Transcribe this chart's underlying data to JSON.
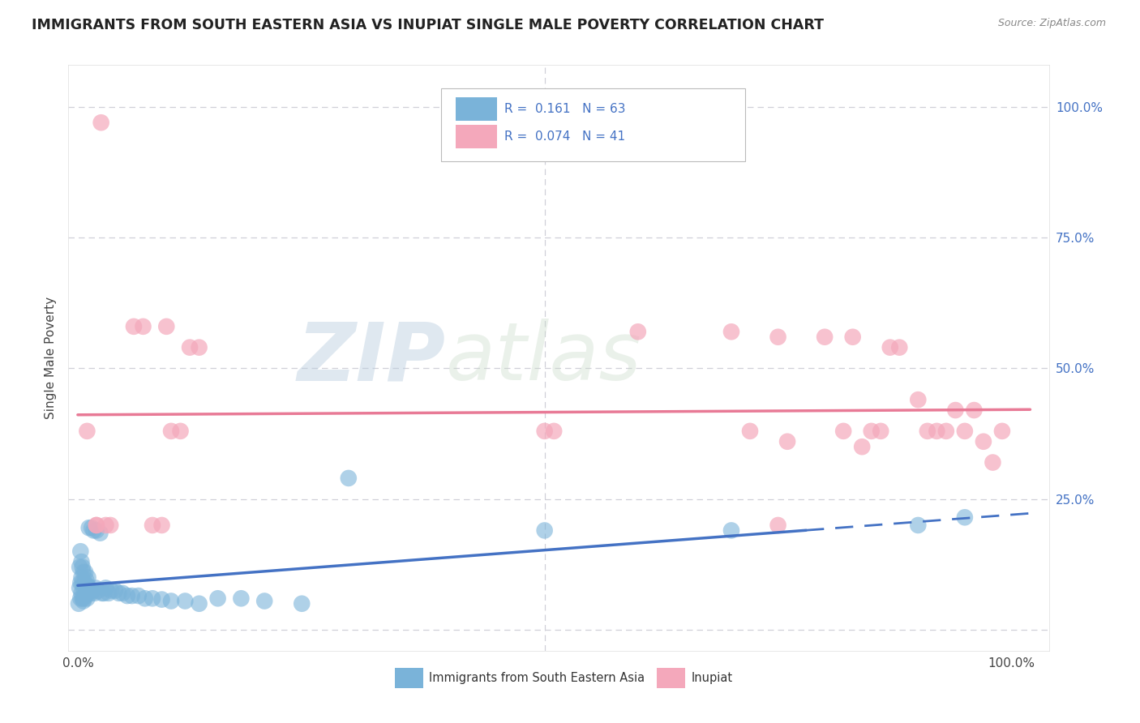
{
  "title": "IMMIGRANTS FROM SOUTH EASTERN ASIA VS INUPIAT SINGLE MALE POVERTY CORRELATION CHART",
  "source": "Source: ZipAtlas.com",
  "ylabel": "Single Male Poverty",
  "watermark_zip": "ZIP",
  "watermark_atlas": "atlas",
  "blue_color": "#7ab3d9",
  "pink_color": "#f4a8bb",
  "blue_line_color": "#4472c4",
  "pink_line_color": "#e87a96",
  "label_color": "#4472c4",
  "tick_color": "#4472c4",
  "background_color": "#ffffff",
  "grid_color": "#d0d0d8",
  "legend_R1": "0.161",
  "legend_N1": "63",
  "legend_R2": "0.074",
  "legend_N2": "41",
  "blue_scatter_x": [
    0.001,
    0.002,
    0.002,
    0.003,
    0.003,
    0.003,
    0.004,
    0.004,
    0.004,
    0.005,
    0.005,
    0.005,
    0.006,
    0.006,
    0.006,
    0.007,
    0.007,
    0.008,
    0.008,
    0.008,
    0.009,
    0.009,
    0.01,
    0.01,
    0.011,
    0.011,
    0.012,
    0.013,
    0.014,
    0.015,
    0.016,
    0.017,
    0.018,
    0.019,
    0.02,
    0.022,
    0.024,
    0.026,
    0.028,
    0.03,
    0.033,
    0.036,
    0.04,
    0.044,
    0.048,
    0.053,
    0.058,
    0.065,
    0.072,
    0.08,
    0.09,
    0.1,
    0.115,
    0.13,
    0.15,
    0.175,
    0.2,
    0.24,
    0.29,
    0.5,
    0.7,
    0.9,
    0.95
  ],
  "blue_scatter_y": [
    0.05,
    0.08,
    0.12,
    0.06,
    0.09,
    0.15,
    0.07,
    0.1,
    0.13,
    0.06,
    0.09,
    0.12,
    0.055,
    0.08,
    0.11,
    0.06,
    0.09,
    0.065,
    0.085,
    0.11,
    0.07,
    0.095,
    0.06,
    0.085,
    0.07,
    0.1,
    0.195,
    0.08,
    0.07,
    0.195,
    0.075,
    0.19,
    0.07,
    0.08,
    0.19,
    0.075,
    0.185,
    0.07,
    0.07,
    0.08,
    0.07,
    0.075,
    0.075,
    0.07,
    0.07,
    0.065,
    0.065,
    0.065,
    0.06,
    0.06,
    0.058,
    0.055,
    0.055,
    0.05,
    0.06,
    0.06,
    0.055,
    0.05,
    0.29,
    0.19,
    0.19,
    0.2,
    0.215
  ],
  "pink_scatter_x": [
    0.01,
    0.02,
    0.025,
    0.03,
    0.06,
    0.07,
    0.08,
    0.09,
    0.095,
    0.1,
    0.11,
    0.12,
    0.13,
    0.5,
    0.51,
    0.6,
    0.7,
    0.72,
    0.75,
    0.8,
    0.82,
    0.85,
    0.86,
    0.87,
    0.88,
    0.9,
    0.91,
    0.92,
    0.93,
    0.94,
    0.95,
    0.96,
    0.97,
    0.98,
    0.99,
    0.75,
    0.83,
    0.76,
    0.84,
    0.02,
    0.035
  ],
  "pink_scatter_y": [
    0.38,
    0.2,
    0.97,
    0.2,
    0.58,
    0.58,
    0.2,
    0.2,
    0.58,
    0.38,
    0.38,
    0.54,
    0.54,
    0.38,
    0.38,
    0.57,
    0.57,
    0.38,
    0.2,
    0.56,
    0.38,
    0.38,
    0.38,
    0.54,
    0.54,
    0.44,
    0.38,
    0.38,
    0.38,
    0.42,
    0.38,
    0.42,
    0.36,
    0.32,
    0.38,
    0.56,
    0.56,
    0.36,
    0.35,
    0.2,
    0.2
  ],
  "xlim": [
    0.0,
    1.0
  ],
  "ylim": [
    0.0,
    1.0
  ],
  "yticks": [
    0.0,
    0.25,
    0.5,
    0.75,
    1.0
  ],
  "ytick_labels": [
    "",
    "25.0%",
    "50.0%",
    "75.0%",
    "100.0%"
  ],
  "xtick_labels": [
    "0.0%",
    "100.0%"
  ],
  "xtick_positions": [
    0.0,
    1.0
  ]
}
